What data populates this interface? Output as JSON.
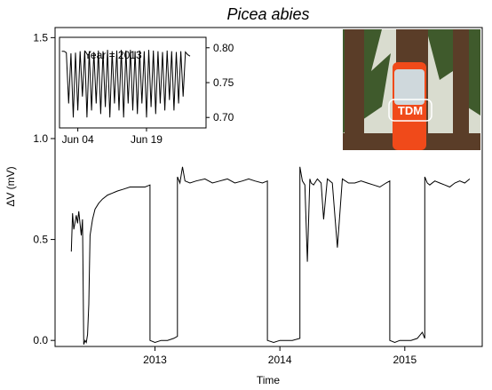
{
  "chart_data": [
    {
      "type": "line",
      "title": "Picea abies",
      "xlabel": "Time",
      "ylabel": "ΔV (mV)",
      "xlim": [
        2012.2,
        2015.62
      ],
      "ylim": [
        -0.03,
        1.55
      ],
      "grid": false,
      "xticks": [
        2013,
        2014,
        2015
      ],
      "xtick_labels": [
        "2013",
        "2014",
        "2015"
      ],
      "yticks": [
        0.0,
        0.5,
        1.0,
        1.5
      ],
      "ytick_labels": [
        "0.0",
        "0.5",
        "1.0",
        "1.5"
      ],
      "series": [
        {
          "segments": [
            {
              "x": [
                2012.33,
                2012.34,
                2012.35,
                2012.37,
                2012.38,
                2012.39,
                2012.41,
                2012.42,
                2012.43,
                2012.44,
                2012.45,
                2012.46,
                2012.47,
                2012.48,
                2012.5,
                2012.52,
                2012.55,
                2012.58,
                2012.62,
                2012.66,
                2012.7,
                2012.75,
                2012.8,
                2012.86,
                2012.92,
                2012.96
              ],
              "y": [
                0.44,
                0.63,
                0.55,
                0.62,
                0.58,
                0.64,
                0.52,
                0.6,
                -0.02,
                0.0,
                -0.01,
                0.03,
                0.18,
                0.52,
                0.6,
                0.65,
                0.68,
                0.7,
                0.72,
                0.73,
                0.74,
                0.75,
                0.76,
                0.76,
                0.76,
                0.77
              ]
            },
            {
              "x": [
                2012.96,
                2013.0,
                2013.05,
                2013.1,
                2013.15,
                2013.18
              ],
              "y": [
                0.0,
                -0.01,
                0.0,
                0.0,
                0.01,
                0.02
              ]
            },
            {
              "x": [
                2013.18,
                2013.2,
                2013.22,
                2013.24,
                2013.28,
                2013.33,
                2013.4,
                2013.46,
                2013.52,
                2013.58,
                2013.64,
                2013.7,
                2013.75,
                2013.8,
                2013.86,
                2013.9
              ],
              "y": [
                0.81,
                0.78,
                0.86,
                0.79,
                0.78,
                0.79,
                0.8,
                0.78,
                0.79,
                0.8,
                0.78,
                0.79,
                0.8,
                0.79,
                0.78,
                0.79
              ]
            },
            {
              "x": [
                2013.9,
                2013.95,
                2014.0,
                2014.05,
                2014.1,
                2014.16
              ],
              "y": [
                0.0,
                -0.01,
                0.0,
                0.0,
                0.0,
                0.01
              ]
            },
            {
              "x": [
                2014.16,
                2014.18,
                2014.2,
                2014.22,
                2014.24,
                2014.25,
                2014.27,
                2014.3,
                2014.33,
                2014.35,
                2014.38,
                2014.42,
                2014.46,
                2014.5,
                2014.55,
                2014.6,
                2014.65,
                2014.7,
                2014.75,
                2014.8,
                2014.85,
                2014.88
              ],
              "y": [
                0.86,
                0.79,
                0.77,
                0.39,
                0.8,
                0.78,
                0.77,
                0.8,
                0.78,
                0.6,
                0.8,
                0.78,
                0.46,
                0.8,
                0.78,
                0.78,
                0.79,
                0.78,
                0.77,
                0.76,
                0.78,
                0.79
              ]
            },
            {
              "x": [
                2014.88,
                2014.92,
                2014.96,
                2015.0,
                2015.05,
                2015.1,
                2015.14,
                2015.16
              ],
              "y": [
                0.0,
                -0.01,
                0.0,
                0.0,
                0.0,
                0.01,
                0.04,
                0.01
              ]
            },
            {
              "x": [
                2015.16,
                2015.18,
                2015.2,
                2015.24,
                2015.28,
                2015.32,
                2015.36,
                2015.4,
                2015.44,
                2015.48,
                2015.52
              ],
              "y": [
                0.81,
                0.78,
                0.77,
                0.79,
                0.78,
                0.77,
                0.76,
                0.78,
                0.79,
                0.78,
                0.8
              ]
            }
          ]
        }
      ]
    },
    {
      "type": "line",
      "title": "",
      "annotation": "Year = 2013",
      "xlabel": "",
      "ylabel": "",
      "xlim": [
        0,
        32
      ],
      "ylim": [
        0.685,
        0.815
      ],
      "y_axis_position": "right",
      "grid": false,
      "xticks": [
        4,
        19
      ],
      "xtick_labels": [
        "Jun 04",
        "Jun 19"
      ],
      "yticks": [
        0.7,
        0.75,
        0.8
      ],
      "ytick_labels": [
        "0.70",
        "0.75",
        "0.80"
      ],
      "series": [
        {
          "x": [
            0.5,
            1.0,
            1.5,
            2.0,
            2.5,
            3.0,
            3.5,
            4.0,
            4.5,
            5.0,
            5.5,
            6.0,
            6.5,
            7.0,
            7.5,
            8.0,
            8.5,
            9.0,
            9.5,
            10.0,
            10.5,
            11.0,
            11.5,
            12.0,
            12.5,
            13.0,
            13.5,
            14.0,
            14.5,
            15.0,
            15.5,
            16.0,
            16.5,
            17.0,
            17.5,
            18.0,
            18.5,
            19.0,
            19.5,
            20.0,
            20.5,
            21.0,
            21.5,
            22.0,
            22.5,
            23.0,
            23.5,
            24.0,
            24.5,
            25.0,
            25.5,
            26.0,
            26.5,
            27.0,
            27.5,
            28.0,
            28.5
          ],
          "y": [
            0.795,
            0.795,
            0.793,
            0.72,
            0.792,
            0.7,
            0.793,
            0.71,
            0.795,
            0.73,
            0.796,
            0.7,
            0.795,
            0.71,
            0.794,
            0.72,
            0.796,
            0.705,
            0.795,
            0.715,
            0.797,
            0.7,
            0.795,
            0.72,
            0.796,
            0.71,
            0.797,
            0.7,
            0.796,
            0.72,
            0.797,
            0.71,
            0.795,
            0.705,
            0.796,
            0.72,
            0.795,
            0.7,
            0.797,
            0.715,
            0.796,
            0.705,
            0.795,
            0.72,
            0.794,
            0.71,
            0.796,
            0.725,
            0.795,
            0.71,
            0.794,
            0.72,
            0.795,
            0.73,
            0.794,
            0.79,
            0.788
          ]
        }
      ]
    }
  ],
  "photo": {
    "label": "TDM",
    "colors": {
      "sky": "#d9dccf",
      "bark": "#5a3d28",
      "foliage": "#3f5a2c",
      "paint": "#f04a1a",
      "bag": "#cfd8dc"
    }
  }
}
